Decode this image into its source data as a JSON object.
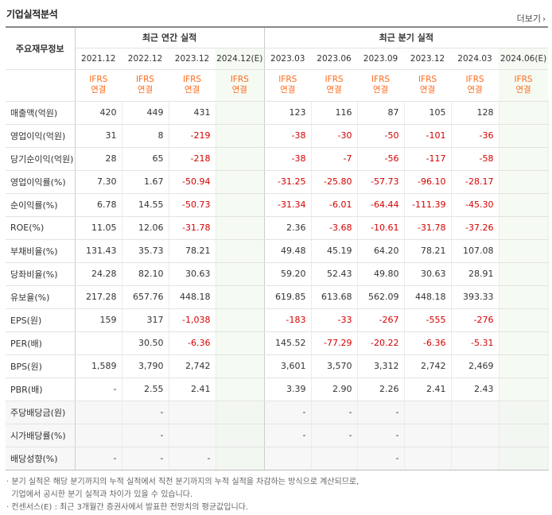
{
  "header": {
    "title": "기업실적분석",
    "more_label": "더보기",
    "more_arrow": "›"
  },
  "groups": {
    "annual": "최근 연간 실적",
    "quarter": "최근 분기 실적"
  },
  "rowhead_label": "주요재무정보",
  "periods": [
    "2021.12",
    "2022.12",
    "2023.12",
    "2024.12(E)",
    "2023.03",
    "2023.06",
    "2023.09",
    "2023.12",
    "2024.03",
    "2024.06(E)"
  ],
  "basis": [
    "IFRS 연결",
    "IFRS 연결",
    "IFRS 연결",
    "IFRS 연결",
    "IFRS 연결",
    "IFRS 연결",
    "IFRS 연결",
    "IFRS 연결",
    "IFRS 연결",
    "IFRS 연결"
  ],
  "rows": [
    {
      "label": "매출액(억원)",
      "values": [
        "420",
        "449",
        "431",
        "",
        "123",
        "116",
        "87",
        "105",
        "128",
        ""
      ]
    },
    {
      "label": "영업이익(억원)",
      "values": [
        "31",
        "8",
        "-219",
        "",
        "-38",
        "-30",
        "-50",
        "-101",
        "-36",
        ""
      ]
    },
    {
      "label": "당기순이익(억원)",
      "values": [
        "28",
        "65",
        "-218",
        "",
        "-38",
        "-7",
        "-56",
        "-117",
        "-58",
        ""
      ]
    },
    {
      "label": "영업이익률(%)",
      "values": [
        "7.30",
        "1.67",
        "-50.94",
        "",
        "-31.25",
        "-25.80",
        "-57.73",
        "-96.10",
        "-28.17",
        ""
      ]
    },
    {
      "label": "순이익률(%)",
      "values": [
        "6.78",
        "14.55",
        "-50.73",
        "",
        "-31.34",
        "-6.01",
        "-64.44",
        "-111.39",
        "-45.30",
        ""
      ]
    },
    {
      "label": "ROE(%)",
      "values": [
        "11.05",
        "12.06",
        "-31.78",
        "",
        "2.36",
        "-3.68",
        "-10.61",
        "-31.78",
        "-37.26",
        ""
      ]
    },
    {
      "label": "부채비율(%)",
      "values": [
        "131.43",
        "35.73",
        "78.21",
        "",
        "49.48",
        "45.19",
        "64.20",
        "78.21",
        "107.08",
        ""
      ]
    },
    {
      "label": "당좌비율(%)",
      "values": [
        "24.28",
        "82.10",
        "30.63",
        "",
        "59.20",
        "52.43",
        "49.80",
        "30.63",
        "28.91",
        ""
      ]
    },
    {
      "label": "유보율(%)",
      "values": [
        "217.28",
        "657.76",
        "448.18",
        "",
        "619.85",
        "613.68",
        "562.09",
        "448.18",
        "393.33",
        ""
      ]
    },
    {
      "label": "EPS(원)",
      "values": [
        "159",
        "317",
        "-1,038",
        "",
        "-183",
        "-33",
        "-267",
        "-555",
        "-276",
        ""
      ]
    },
    {
      "label": "PER(배)",
      "values": [
        "",
        "30.50",
        "-6.36",
        "",
        "145.52",
        "-77.29",
        "-20.22",
        "-6.36",
        "-5.31",
        ""
      ]
    },
    {
      "label": "BPS(원)",
      "values": [
        "1,589",
        "3,790",
        "2,742",
        "",
        "3,601",
        "3,570",
        "3,312",
        "2,742",
        "2,469",
        ""
      ]
    },
    {
      "label": "PBR(배)",
      "values": [
        "-",
        "2.55",
        "2.41",
        "",
        "3.39",
        "2.90",
        "2.26",
        "2.41",
        "2.43",
        ""
      ]
    },
    {
      "label": "주당배당금(원)",
      "values": [
        "",
        "-",
        "",
        "",
        "-",
        "-",
        "-",
        "",
        "",
        ""
      ]
    },
    {
      "label": "시가배당률(%)",
      "values": [
        "",
        "-",
        "",
        "",
        "-",
        "-",
        "-",
        "",
        "",
        ""
      ]
    },
    {
      "label": "배당성향(%)",
      "values": [
        "-",
        "-",
        "-",
        "",
        "",
        "",
        "-",
        "",
        "",
        ""
      ]
    }
  ],
  "notes": {
    "line1": "· 분기 실적은 해당 분기까지의 누적 실적에서 직전 분기까지의 누적 실적을 차감하는 방식으로 계산되므로,",
    "line2": "  기업에서 공시한 분기 실적과 차이가 있을 수 있습니다.",
    "line3": "· 컨센서스(E) : 최근 3개월간 증권사에서 발표한 전망치의 평균값입니다."
  },
  "colors": {
    "estimate_bg": "#f5fbf3",
    "basis_text": "#ff6a1a",
    "negative": "#d40000"
  }
}
